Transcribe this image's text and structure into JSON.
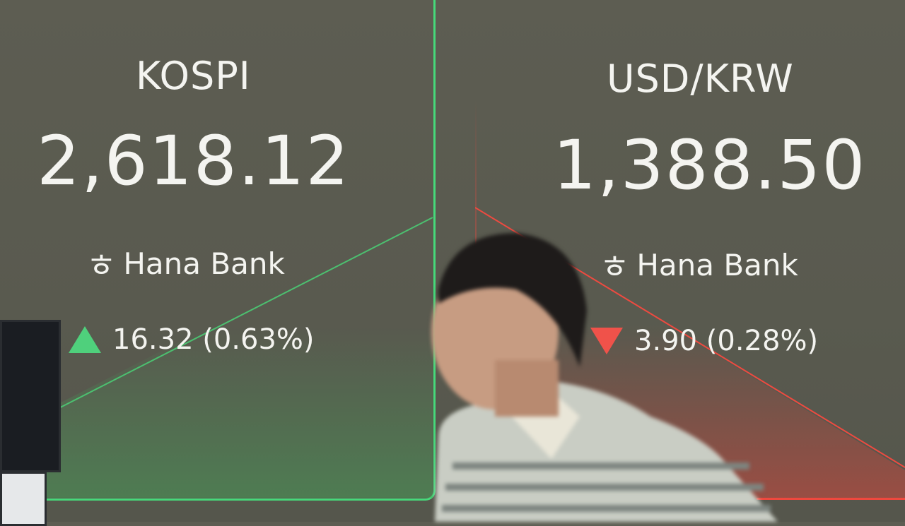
{
  "kospi": {
    "title": "KOSPI",
    "value": "2,618.12",
    "brand": "Hana Bank",
    "change": "16.32 (0.63%)",
    "direction": "up",
    "color": "#4fd07c"
  },
  "usdkrw": {
    "title": "USD/KRW",
    "value": "1,388.50",
    "brand": "Hana Bank",
    "change": "3.90 (0.28%)",
    "direction": "down",
    "color": "#f0524a"
  }
}
